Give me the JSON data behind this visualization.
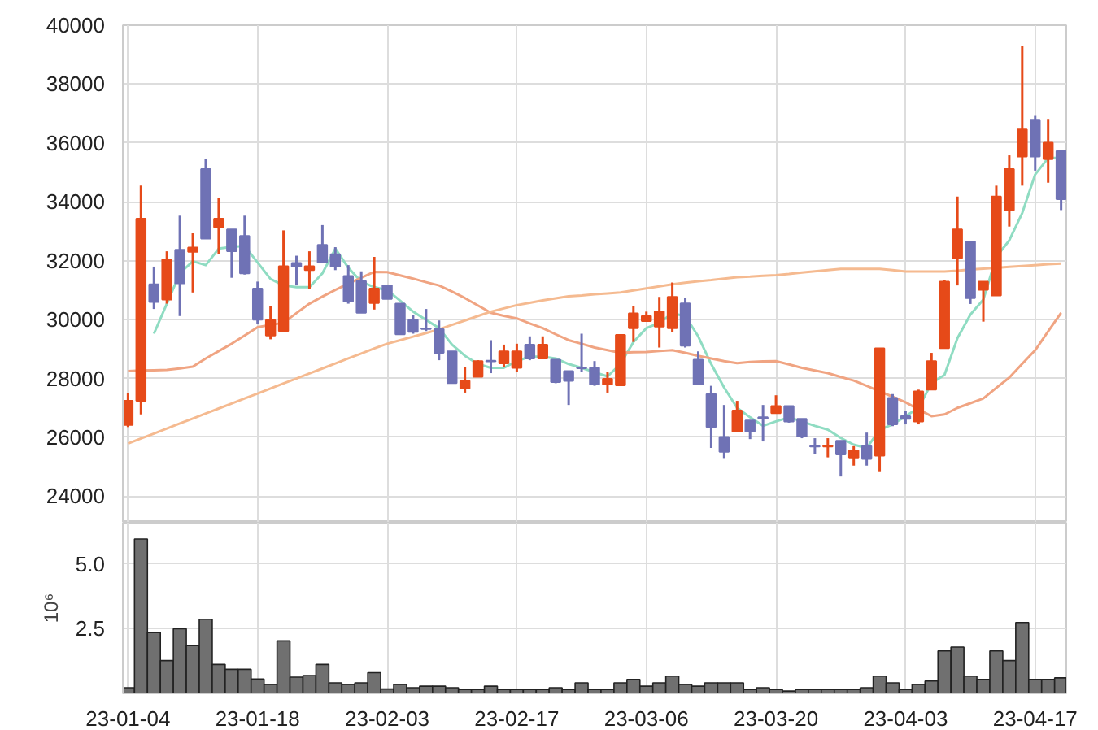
{
  "chart_data": [
    {
      "type": "candlestick",
      "tick_labels": "y",
      "grid": true,
      "categories": [
        null,
        null,
        null,
        null,
        null,
        null,
        null,
        null,
        null,
        null,
        null,
        null,
        null,
        null,
        null,
        null,
        null,
        null,
        null,
        null,
        null,
        null,
        null,
        null,
        null,
        null,
        null,
        null,
        null,
        null,
        null,
        null,
        null,
        null,
        null,
        null,
        null,
        null,
        null,
        null,
        null,
        null,
        null,
        null,
        null,
        null,
        null,
        null,
        null,
        null,
        null,
        null,
        null,
        null,
        null,
        null,
        null,
        null,
        null,
        null,
        null,
        null,
        null,
        null,
        null,
        null,
        null,
        null,
        null,
        null,
        null,
        null,
        null
      ],
      "ylim": [
        23100,
        40000
      ],
      "yticks": [
        24000,
        26000,
        28000,
        30000,
        32000,
        34000,
        36000,
        38000,
        40000
      ],
      "ohlc": [
        [
          26420,
          27500,
          26350,
          27240
        ],
        [
          27240,
          34550,
          26780,
          33430
        ],
        [
          31200,
          31800,
          30360,
          30600
        ],
        [
          30680,
          32320,
          30540,
          32040
        ],
        [
          32370,
          33530,
          30120,
          31230
        ],
        [
          32300,
          32930,
          30920,
          32450
        ],
        [
          35110,
          35450,
          32750,
          32750
        ],
        [
          33140,
          34140,
          32220,
          33430
        ],
        [
          33060,
          33060,
          31420,
          32320
        ],
        [
          32840,
          33530,
          31530,
          31570
        ],
        [
          31050,
          31290,
          29850,
          30000
        ],
        [
          29460,
          30450,
          29330,
          29980
        ],
        [
          29610,
          33030,
          29610,
          31810
        ],
        [
          31920,
          32170,
          31160,
          31800
        ],
        [
          31680,
          32320,
          31050,
          31810
        ],
        [
          32540,
          33210,
          31940,
          31940
        ],
        [
          32220,
          32460,
          31680,
          31800
        ],
        [
          31480,
          31850,
          30540,
          30620
        ],
        [
          31310,
          31640,
          30230,
          30230
        ],
        [
          30560,
          32130,
          30340,
          31050
        ],
        [
          31160,
          31160,
          30700,
          30700
        ],
        [
          30545,
          30545,
          29500,
          29500
        ],
        [
          29990,
          30170,
          29520,
          29580
        ],
        [
          29700,
          30360,
          29610,
          29680
        ],
        [
          29670,
          29970,
          28620,
          28870
        ],
        [
          28920,
          28920,
          27840,
          27840
        ],
        [
          27660,
          28400,
          27520,
          27920
        ],
        [
          28060,
          28620,
          28060,
          28590
        ],
        [
          28600,
          29300,
          28180,
          28580
        ],
        [
          28510,
          29150,
          28400,
          28920
        ],
        [
          28360,
          29180,
          28210,
          28920
        ],
        [
          29150,
          29430,
          28620,
          28680
        ],
        [
          28680,
          29430,
          28680,
          29150
        ],
        [
          28640,
          28640,
          27840,
          27880
        ],
        [
          28250,
          28250,
          27100,
          27920
        ],
        [
          28370,
          29520,
          28210,
          28350
        ],
        [
          28360,
          28590,
          27750,
          27800
        ],
        [
          27800,
          28210,
          27520,
          27990
        ],
        [
          27770,
          29480,
          27770,
          29480
        ],
        [
          29710,
          30450,
          29240,
          30210
        ],
        [
          29950,
          30270,
          29950,
          30120
        ],
        [
          29760,
          30770,
          29050,
          30270
        ],
        [
          29710,
          31260,
          29580,
          30770
        ],
        [
          30550,
          30730,
          29050,
          29110
        ],
        [
          28640,
          28920,
          27800,
          27800
        ],
        [
          27470,
          27750,
          25640,
          26350
        ],
        [
          26010,
          27100,
          25270,
          25510
        ],
        [
          26200,
          27240,
          26200,
          26910
        ],
        [
          26570,
          26570,
          25940,
          26200
        ],
        [
          26680,
          27100,
          25860,
          26650
        ],
        [
          26820,
          27430,
          26820,
          27060
        ],
        [
          27060,
          27060,
          26500,
          26540
        ],
        [
          26630,
          26630,
          25970,
          26030
        ],
        [
          25710,
          25970,
          25420,
          25690
        ],
        [
          25690,
          25970,
          25320,
          25710
        ],
        [
          25880,
          25880,
          24670,
          25420
        ],
        [
          25290,
          25700,
          25040,
          25550
        ],
        [
          25700,
          26160,
          25040,
          25270
        ],
        [
          25380,
          29020,
          24820,
          29020
        ],
        [
          27340,
          27470,
          26380,
          26440
        ],
        [
          26720,
          26910,
          26440,
          26630
        ],
        [
          26540,
          27620,
          26440,
          27560
        ],
        [
          27620,
          28870,
          27620,
          28590
        ],
        [
          29030,
          31350,
          29030,
          31290
        ],
        [
          32090,
          34180,
          31160,
          33060
        ],
        [
          32650,
          32650,
          30530,
          30730
        ],
        [
          31010,
          31290,
          29930,
          31290
        ],
        [
          30820,
          34550,
          30820,
          34180
        ],
        [
          33720,
          35580,
          33160,
          35110
        ],
        [
          35540,
          39310,
          34550,
          36460
        ],
        [
          36760,
          36920,
          35060,
          35540
        ],
        [
          35450,
          36790,
          34650,
          36010
        ],
        [
          35730,
          35730,
          33720,
          34090
        ]
      ],
      "colors": [
        "#e64a19",
        "#e64a19",
        "#6f72b5",
        "#e64a19",
        "#6f72b5",
        "#e64a19",
        "#6f72b5",
        "#e64a19",
        "#6f72b5",
        "#6f72b5",
        "#6f72b5",
        "#e64a19",
        "#e64a19",
        "#6f72b5",
        "#e64a19",
        "#6f72b5",
        "#6f72b5",
        "#6f72b5",
        "#6f72b5",
        "#e64a19",
        "#6f72b5",
        "#6f72b5",
        "#6f72b5",
        "#6f72b5",
        "#6f72b5",
        "#6f72b5",
        "#e64a19",
        "#e64a19",
        "#6f72b5",
        "#e64a19",
        "#e64a19",
        "#6f72b5",
        "#e64a19",
        "#6f72b5",
        "#6f72b5",
        "#6f72b5",
        "#6f72b5",
        "#e64a19",
        "#e64a19",
        "#e64a19",
        "#e64a19",
        "#e64a19",
        "#e64a19",
        "#6f72b5",
        "#6f72b5",
        "#6f72b5",
        "#6f72b5",
        "#e64a19",
        "#6f72b5",
        "#6f72b5",
        "#e64a19",
        "#6f72b5",
        "#6f72b5",
        "#6f72b5",
        "#e64a19",
        "#6f72b5",
        "#e64a19",
        "#6f72b5",
        "#e64a19",
        "#6f72b5",
        "#6f72b5",
        "#e64a19",
        "#e64a19",
        "#e64a19",
        "#e64a19",
        "#6f72b5",
        "#e64a19",
        "#e64a19",
        "#e64a19",
        "#e64a19",
        "#6f72b5",
        "#e64a19",
        "#6f72b5"
      ],
      "series": [
        {
          "type": "line",
          "color": "#8fdcc2",
          "values": [
            null,
            null,
            29520,
            30540,
            31570,
            31980,
            31850,
            32410,
            32470,
            32500,
            31940,
            31380,
            31160,
            31100,
            31100,
            31570,
            32410,
            31760,
            31290,
            31100,
            31000,
            30640,
            30270,
            29990,
            29710,
            29150,
            28770,
            28490,
            28360,
            28360,
            28590,
            28740,
            28740,
            28680,
            28490,
            28360,
            28210,
            28070,
            28490,
            29240,
            29710,
            29890,
            30210,
            30120,
            29430,
            28490,
            27690,
            27000,
            26680,
            26390,
            26540,
            26680,
            26540,
            26390,
            26260,
            25980,
            25750,
            25640,
            26260,
            26440,
            26720,
            27000,
            27840,
            28120,
            29370,
            30170,
            30680,
            32130,
            32690,
            33620,
            34930,
            35490,
            35490
          ]
        },
        {
          "type": "line",
          "color": "#f0a482",
          "values": [
            28250,
            28270,
            28280,
            28290,
            28340,
            28400,
            28680,
            28930,
            29180,
            29460,
            29740,
            29820,
            29890,
            30220,
            30540,
            30780,
            31010,
            31220,
            31420,
            31620,
            31610,
            31500,
            31390,
            31270,
            31160,
            30950,
            30730,
            30480,
            30230,
            30130,
            30040,
            29870,
            29710,
            29500,
            29300,
            29180,
            29050,
            28960,
            28870,
            28890,
            28900,
            28930,
            28960,
            28870,
            28770,
            28680,
            28590,
            28520,
            28560,
            28580,
            28590,
            28480,
            28360,
            28270,
            28180,
            28050,
            27930,
            27750,
            27560,
            27380,
            27190,
            26950,
            26720,
            26780,
            27000,
            27160,
            27320,
            27680,
            28030,
            28500,
            28960,
            29600,
            30230
          ]
        },
        {
          "type": "line",
          "color": "#f5ba90",
          "values": [
            25790,
            25960,
            26130,
            26300,
            26470,
            26640,
            26810,
            26980,
            27150,
            27320,
            27490,
            27660,
            27830,
            28000,
            28170,
            28340,
            28510,
            28680,
            28850,
            29020,
            29180,
            29300,
            29420,
            29540,
            29670,
            29820,
            29970,
            30120,
            30270,
            30380,
            30490,
            30570,
            30650,
            30720,
            30790,
            30820,
            30860,
            30890,
            30920,
            30990,
            31060,
            31130,
            31200,
            31250,
            31300,
            31340,
            31390,
            31440,
            31460,
            31490,
            31510,
            31550,
            31600,
            31640,
            31680,
            31720,
            31720,
            31720,
            31720,
            31680,
            31630,
            31630,
            31630,
            31630,
            31660,
            31700,
            31730,
            31760,
            31790,
            31820,
            31850,
            31880,
            31900
          ]
        }
      ]
    },
    {
      "type": "bar",
      "grid": true,
      "ylabel": "10⁶",
      "color": "#707070",
      "categories": [
        "23-01-04",
        null,
        null,
        null,
        null,
        null,
        null,
        null,
        null,
        null,
        "23-01-18",
        null,
        null,
        null,
        null,
        null,
        null,
        null,
        null,
        null,
        "23-02-03",
        null,
        null,
        null,
        null,
        null,
        null,
        null,
        null,
        null,
        "23-02-17",
        null,
        null,
        null,
        null,
        null,
        null,
        null,
        null,
        null,
        "23-03-06",
        null,
        null,
        null,
        null,
        null,
        null,
        null,
        null,
        null,
        "23-03-20",
        null,
        null,
        null,
        null,
        null,
        null,
        null,
        null,
        null,
        "23-04-03",
        null,
        null,
        null,
        null,
        null,
        null,
        null,
        null,
        null,
        "23-04-17",
        null,
        null
      ],
      "ylim": [
        0,
        6.6
      ],
      "yticks": [
        {
          "value": 2.5,
          "label": "2.5"
        },
        {
          "value": 5,
          "label": "5.0"
        }
      ],
      "values": [
        0.22,
        5.97,
        2.35,
        1.27,
        2.5,
        1.85,
        2.87,
        1.12,
        0.93,
        0.93,
        0.56,
        0.35,
        2.03,
        0.63,
        0.69,
        1.12,
        0.41,
        0.35,
        0.41,
        0.8,
        0.17,
        0.35,
        0.22,
        0.28,
        0.28,
        0.22,
        0.15,
        0.15,
        0.28,
        0.15,
        0.15,
        0.15,
        0.15,
        0.22,
        0.15,
        0.41,
        0.15,
        0.15,
        0.41,
        0.54,
        0.28,
        0.41,
        0.67,
        0.35,
        0.28,
        0.41,
        0.41,
        0.41,
        0.15,
        0.22,
        0.15,
        0.09,
        0.15,
        0.15,
        0.15,
        0.15,
        0.15,
        0.22,
        0.67,
        0.41,
        0.15,
        0.35,
        0.48,
        1.64,
        1.79,
        0.67,
        0.54,
        1.64,
        1.27,
        2.74,
        0.54,
        0.54,
        0.6
      ]
    }
  ]
}
